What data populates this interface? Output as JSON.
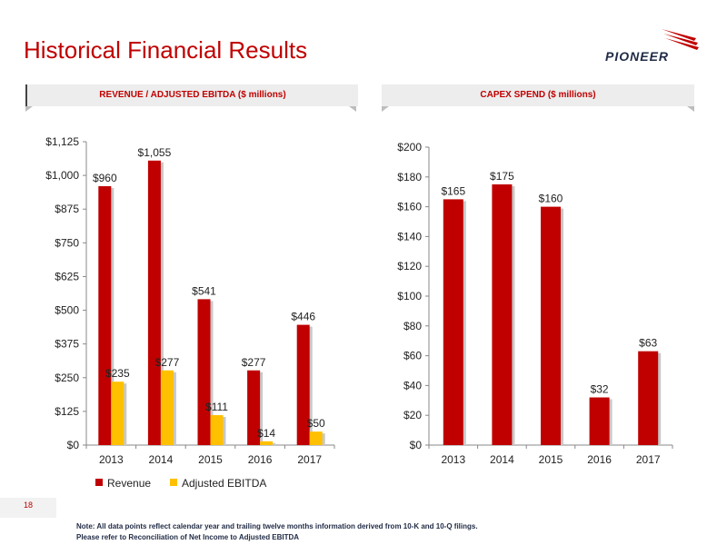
{
  "page": {
    "title": "Historical Financial Results",
    "logo_text": "PIONEER",
    "left_header": "REVENUE / ADJUSTED EBITDA ($ millions)",
    "right_header": "CAPEX SPEND ($ millions)",
    "page_number": "18",
    "note_line1": "Note: All data points reflect calendar year and trailing twelve months information derived from 10-K and 10-Q filings.",
    "note_line2": "Please refer to Reconciliation of Net Income to Adjusted EBITDA",
    "colors": {
      "accent": "#c00000",
      "revenue": "#c00000",
      "ebitda": "#ffc000",
      "band": "#ededed"
    }
  },
  "chart_data": [
    {
      "type": "bar",
      "title": "REVENUE / ADJUSTED EBITDA ($ millions)",
      "categories": [
        "2013",
        "2014",
        "2015",
        "2016",
        "2017"
      ],
      "series": [
        {
          "name": "Revenue",
          "values": [
            960,
            1055,
            541,
            277,
            446
          ],
          "labels": [
            "$960",
            "$1,055",
            "$541",
            "$277",
            "$446"
          ],
          "color": "#c00000"
        },
        {
          "name": "Adjusted EBITDA",
          "values": [
            235,
            277,
            111,
            14,
            50
          ],
          "labels": [
            "$235",
            "$277",
            "$111",
            "$14",
            "$50"
          ],
          "color": "#ffc000"
        }
      ],
      "ylim": [
        0,
        1125
      ],
      "yticks": [
        0,
        125,
        250,
        375,
        500,
        625,
        750,
        875,
        1000,
        1125
      ],
      "ytick_labels": [
        "$0",
        "$125",
        "$250",
        "$375",
        "$500",
        "$625",
        "$750",
        "$875",
        "$1,000",
        "$1,125"
      ],
      "legend": "bottom",
      "grid": false
    },
    {
      "type": "bar",
      "title": "CAPEX SPEND ($ millions)",
      "categories": [
        "2013",
        "2014",
        "2015",
        "2016",
        "2017"
      ],
      "series": [
        {
          "values": [
            165,
            175,
            160,
            32,
            63
          ],
          "labels": [
            "$165",
            "$175",
            "$160",
            "$32",
            "$63"
          ],
          "color": "#c00000"
        }
      ],
      "ylim": [
        0,
        200
      ],
      "yticks": [
        0,
        20,
        40,
        60,
        80,
        100,
        120,
        140,
        160,
        180,
        200
      ],
      "ytick_labels": [
        "$0",
        "$20",
        "$40",
        "$60",
        "$80",
        "$100",
        "$120",
        "$140",
        "$160",
        "$180",
        "$200"
      ],
      "grid": false
    }
  ]
}
